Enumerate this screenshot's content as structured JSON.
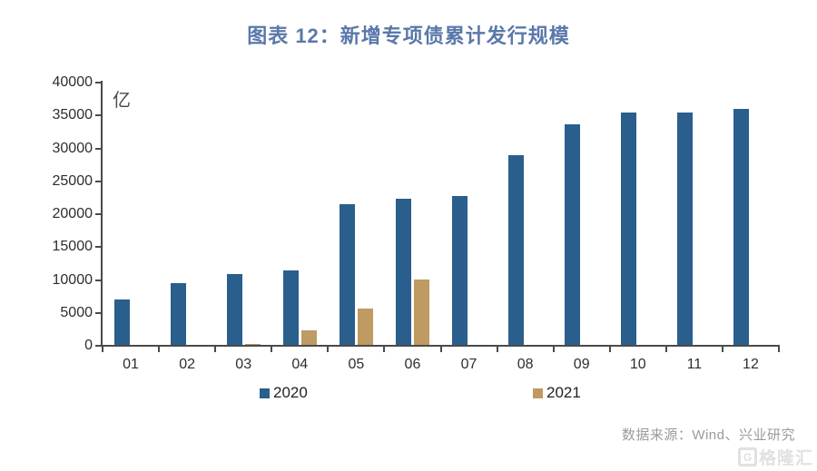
{
  "title": "图表 12：新增专项债累计发行规模",
  "chart_data": {
    "type": "bar",
    "title": "图表 12：新增专项债累计发行规模",
    "unit_label": "亿",
    "categories": [
      "01",
      "02",
      "03",
      "04",
      "05",
      "06",
      "07",
      "08",
      "09",
      "10",
      "11",
      "12"
    ],
    "series": [
      {
        "name": "2020",
        "color": "#2a5e8c",
        "values": [
          7100,
          9500,
          10900,
          11500,
          21500,
          22300,
          22700,
          29000,
          33650,
          35500,
          35450,
          36050
        ]
      },
      {
        "name": "2021",
        "color": "#bf9a62",
        "values": [
          0,
          0,
          300,
          2300,
          5700,
          10100,
          0,
          0,
          0,
          0,
          0,
          0
        ]
      }
    ],
    "ylim": [
      0,
      40000
    ],
    "ytick_step": 5000,
    "yticks": [
      "40000",
      "35000",
      "30000",
      "25000",
      "20000",
      "15000",
      "10000",
      "5000",
      "0"
    ],
    "xlabel": "",
    "ylabel": "亿",
    "grid": false,
    "legend_position": "bottom"
  },
  "footer": {
    "source_note": "数据来源：Wind、兴业研究"
  },
  "watermark": {
    "icon_letter": "G",
    "text": "格隆汇"
  },
  "colors": {
    "series_2020": "#2a5e8c",
    "series_2021": "#bf9a62",
    "title": "#5a78aa",
    "axis": "#4a4a4a",
    "tick_text": "#2e2e2e",
    "source_text": "#9b9b9b",
    "watermark": "#e2e0e0",
    "background": "#ffffff"
  }
}
